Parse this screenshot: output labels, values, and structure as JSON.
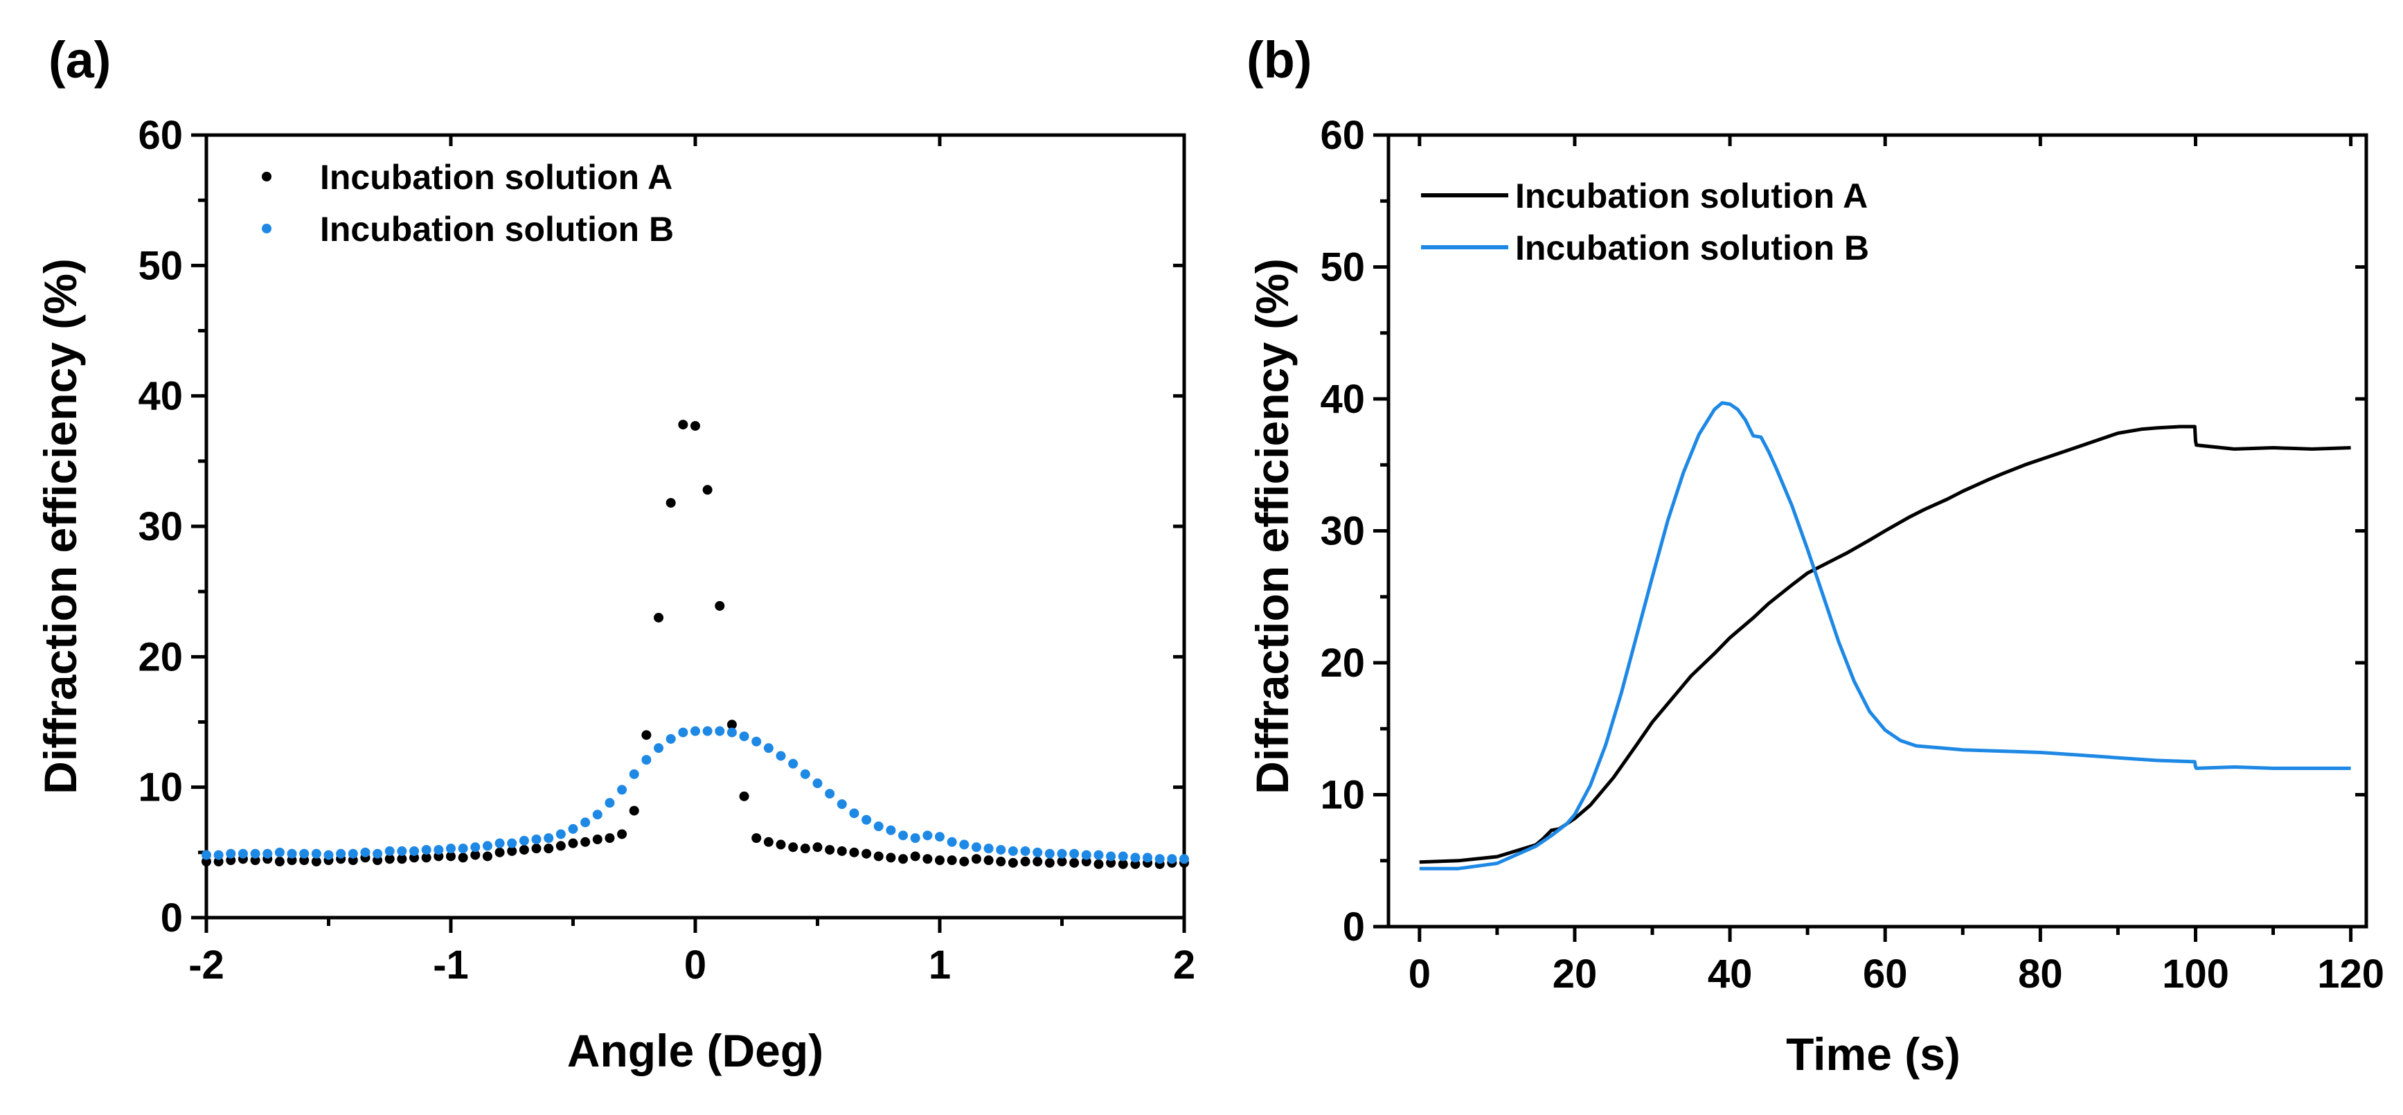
{
  "colors": {
    "series_a": "#000000",
    "series_b": "#1e88e5"
  },
  "chart_data": [
    {
      "panel_label": "(a)",
      "type": "scatter",
      "xlabel": "Angle (Deg)",
      "ylabel": "Diffraction efficiency (%)",
      "xlim": [
        -2,
        2
      ],
      "ylim": [
        0,
        60
      ],
      "xticks": [
        -2,
        -1,
        0,
        1,
        2
      ],
      "yticks": [
        0,
        10,
        20,
        30,
        40,
        50,
        60
      ],
      "grid": false,
      "legend": "top-left",
      "series": [
        {
          "name": "Incubation solution A",
          "color": "#000000",
          "x": [
            -2.0,
            -1.95,
            -1.9,
            -1.85,
            -1.8,
            -1.75,
            -1.7,
            -1.65,
            -1.6,
            -1.55,
            -1.5,
            -1.45,
            -1.4,
            -1.35,
            -1.3,
            -1.25,
            -1.2,
            -1.15,
            -1.1,
            -1.05,
            -1.0,
            -0.95,
            -0.9,
            -0.85,
            -0.8,
            -0.75,
            -0.7,
            -0.65,
            -0.6,
            -0.55,
            -0.5,
            -0.45,
            -0.4,
            -0.35,
            -0.3,
            -0.25,
            -0.2,
            -0.15,
            -0.1,
            -0.05,
            0.0,
            0.05,
            0.1,
            0.15,
            0.2,
            0.25,
            0.3,
            0.35,
            0.4,
            0.45,
            0.5,
            0.55,
            0.6,
            0.65,
            0.7,
            0.75,
            0.8,
            0.85,
            0.9,
            0.95,
            1.0,
            1.05,
            1.1,
            1.15,
            1.2,
            1.25,
            1.3,
            1.35,
            1.4,
            1.45,
            1.5,
            1.55,
            1.6,
            1.65,
            1.7,
            1.75,
            1.8,
            1.85,
            1.9,
            1.95,
            2.0
          ],
          "y": [
            4.3,
            4.3,
            4.4,
            4.5,
            4.4,
            4.5,
            4.3,
            4.4,
            4.4,
            4.3,
            4.4,
            4.5,
            4.4,
            4.6,
            4.4,
            4.5,
            4.5,
            4.6,
            4.6,
            4.7,
            4.7,
            4.6,
            4.8,
            4.7,
            5.0,
            5.1,
            5.2,
            5.3,
            5.3,
            5.5,
            5.7,
            5.8,
            6.0,
            6.1,
            6.4,
            8.2,
            14.0,
            23.0,
            31.8,
            37.8,
            37.7,
            32.8,
            23.9,
            14.8,
            9.3,
            6.1,
            5.8,
            5.6,
            5.4,
            5.3,
            5.4,
            5.2,
            5.1,
            5.0,
            4.9,
            4.7,
            4.6,
            4.5,
            4.7,
            4.5,
            4.4,
            4.4,
            4.3,
            4.5,
            4.4,
            4.3,
            4.2,
            4.3,
            4.3,
            4.2,
            4.3,
            4.2,
            4.3,
            4.1,
            4.2,
            4.1,
            4.1,
            4.2,
            4.1,
            4.2,
            4.2
          ]
        },
        {
          "name": "Incubation solution B",
          "color": "#1e88e5",
          "x": [
            -2.0,
            -1.95,
            -1.9,
            -1.85,
            -1.8,
            -1.75,
            -1.7,
            -1.65,
            -1.6,
            -1.55,
            -1.5,
            -1.45,
            -1.4,
            -1.35,
            -1.3,
            -1.25,
            -1.2,
            -1.15,
            -1.1,
            -1.05,
            -1.0,
            -0.95,
            -0.9,
            -0.85,
            -0.8,
            -0.75,
            -0.7,
            -0.65,
            -0.6,
            -0.55,
            -0.5,
            -0.45,
            -0.4,
            -0.35,
            -0.3,
            -0.25,
            -0.2,
            -0.15,
            -0.1,
            -0.05,
            0.0,
            0.05,
            0.1,
            0.15,
            0.2,
            0.25,
            0.3,
            0.35,
            0.4,
            0.45,
            0.5,
            0.55,
            0.6,
            0.65,
            0.7,
            0.75,
            0.8,
            0.85,
            0.9,
            0.95,
            1.0,
            1.05,
            1.1,
            1.15,
            1.2,
            1.25,
            1.3,
            1.35,
            1.4,
            1.45,
            1.5,
            1.55,
            1.6,
            1.65,
            1.7,
            1.75,
            1.8,
            1.85,
            1.9,
            1.95,
            2.0
          ],
          "y": [
            4.8,
            4.8,
            4.9,
            4.9,
            4.9,
            4.9,
            5.0,
            4.9,
            4.9,
            4.9,
            4.8,
            4.9,
            4.9,
            5.0,
            4.9,
            5.1,
            5.1,
            5.1,
            5.2,
            5.2,
            5.3,
            5.3,
            5.4,
            5.5,
            5.7,
            5.7,
            5.9,
            6.0,
            6.1,
            6.4,
            6.8,
            7.3,
            7.9,
            8.8,
            9.8,
            11.0,
            12.1,
            13.0,
            13.7,
            14.2,
            14.3,
            14.3,
            14.3,
            14.2,
            13.9,
            13.5,
            13.0,
            12.4,
            11.8,
            11.0,
            10.3,
            9.5,
            8.7,
            8.0,
            7.5,
            7.0,
            6.7,
            6.3,
            6.1,
            6.3,
            6.2,
            5.8,
            5.6,
            5.4,
            5.3,
            5.2,
            5.1,
            5.1,
            5.0,
            4.9,
            4.9,
            4.9,
            4.8,
            4.8,
            4.7,
            4.7,
            4.6,
            4.6,
            4.5,
            4.5,
            4.5
          ]
        }
      ]
    },
    {
      "panel_label": "(b)",
      "type": "line",
      "xlabel": "Time (s)",
      "ylabel": "Diffraction efficiency (%)",
      "xlim": [
        -4,
        122
      ],
      "ylim": [
        0,
        60
      ],
      "xticks": [
        0,
        20,
        40,
        60,
        80,
        100,
        120
      ],
      "yticks": [
        0,
        10,
        20,
        30,
        40,
        50,
        60
      ],
      "grid": false,
      "legend": "top-left",
      "series": [
        {
          "name": "Incubation solution A",
          "color": "#000000",
          "x": [
            0,
            5,
            10,
            15,
            16,
            17,
            18,
            20,
            22,
            25,
            28,
            30,
            33,
            35,
            38,
            40,
            43,
            45,
            48,
            50,
            53,
            55,
            58,
            60,
            63,
            65,
            68,
            70,
            73,
            75,
            78,
            80,
            83,
            85,
            88,
            90,
            93,
            95,
            98,
            99.9,
            100,
            100.1,
            105,
            110,
            115,
            120
          ],
          "y": [
            4.9,
            5.0,
            5.3,
            6.2,
            6.7,
            7.3,
            7.4,
            8.2,
            9.2,
            11.3,
            13.8,
            15.5,
            17.6,
            19.0,
            20.7,
            21.9,
            23.4,
            24.5,
            25.9,
            26.8,
            27.7,
            28.3,
            29.3,
            30.0,
            31.0,
            31.6,
            32.4,
            33.0,
            33.8,
            34.3,
            35.0,
            35.4,
            36.0,
            36.4,
            37.0,
            37.4,
            37.7,
            37.8,
            37.9,
            37.9,
            36.8,
            36.5,
            36.2,
            36.3,
            36.2,
            36.3
          ]
        },
        {
          "name": "Incubation solution B",
          "color": "#1e88e5",
          "x": [
            0,
            5,
            10,
            15,
            17,
            19,
            20,
            22,
            24,
            26,
            28,
            30,
            32,
            34,
            36,
            38,
            39,
            40,
            41,
            42,
            43,
            44,
            45,
            46,
            48,
            50,
            52,
            54,
            56,
            58,
            60,
            62,
            64,
            66,
            68,
            70,
            75,
            80,
            85,
            90,
            95,
            99.9,
            100,
            100.1,
            105,
            110,
            115,
            120
          ],
          "y": [
            4.4,
            4.4,
            4.8,
            6.1,
            6.9,
            7.8,
            8.5,
            10.7,
            13.8,
            17.7,
            22.1,
            26.5,
            30.8,
            34.4,
            37.3,
            39.2,
            39.7,
            39.6,
            39.2,
            38.4,
            37.2,
            37.1,
            36.0,
            34.7,
            31.9,
            28.6,
            25.1,
            21.6,
            18.6,
            16.3,
            14.9,
            14.1,
            13.7,
            13.6,
            13.5,
            13.4,
            13.3,
            13.2,
            13.0,
            12.8,
            12.6,
            12.5,
            12.1,
            12.0,
            12.1,
            12.0,
            12.0,
            12.0
          ]
        }
      ]
    }
  ]
}
